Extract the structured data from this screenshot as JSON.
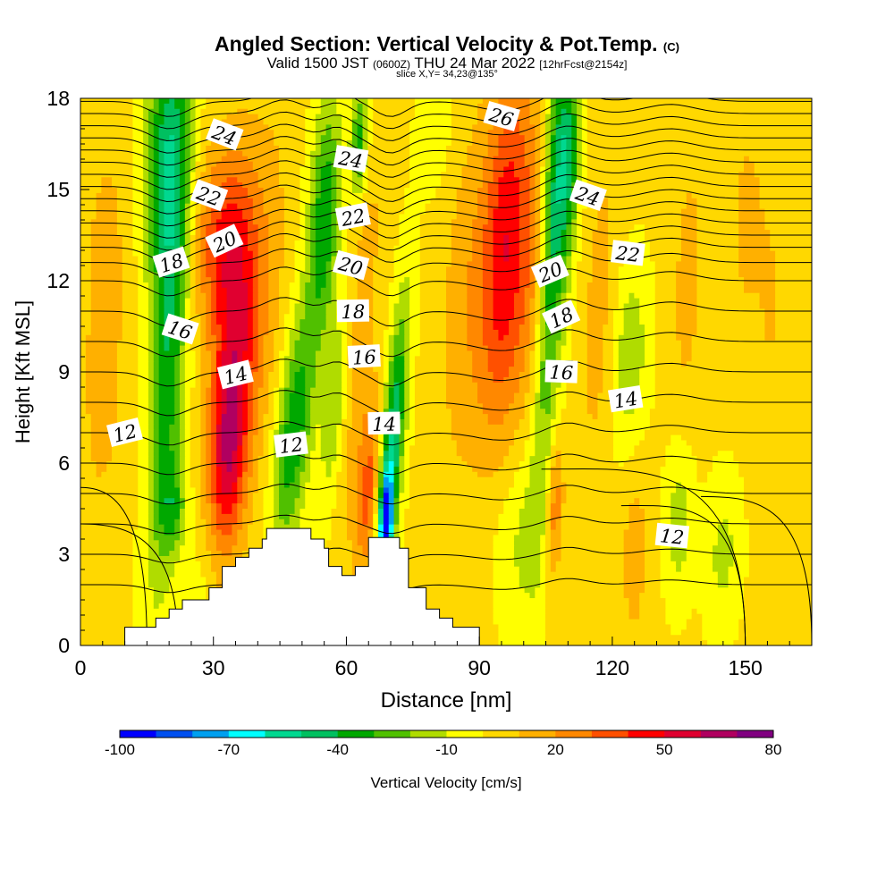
{
  "title": {
    "main": "Angled Section: Vertical Velocity & Pot.Temp.",
    "copyright": "(C)",
    "valid_prefix": "Valid 1500 JST",
    "valid_utc": "(0600Z)",
    "valid_date": "THU 24 Mar 2022",
    "forecast": "[12hrFcst@2154z]",
    "slice": "slice X,Y= 34,23@135°"
  },
  "chart_data": {
    "type": "heatmap",
    "xlabel": "Distance [nm]",
    "ylabel": "Height [Kft MSL]",
    "xlim": [
      0,
      165
    ],
    "ylim": [
      0,
      18
    ],
    "x_ticks": [
      0,
      30,
      60,
      90,
      120,
      150
    ],
    "y_ticks": [
      0,
      3,
      6,
      9,
      12,
      15,
      18
    ],
    "colorbar": {
      "label": "Vertical Velocity [cm/s]",
      "tick_labels": [
        -100,
        -70,
        -40,
        -10,
        20,
        50,
        80
      ],
      "levels": [
        -100,
        -90,
        -80,
        -70,
        -60,
        -50,
        -40,
        -30,
        -20,
        -10,
        0,
        10,
        20,
        30,
        40,
        50,
        60,
        70,
        80
      ],
      "colors": [
        "#0000ff",
        "#0050f0",
        "#00a0f0",
        "#00ffff",
        "#00d890",
        "#00c060",
        "#00a800",
        "#50c000",
        "#b0dc00",
        "#ffff00",
        "#ffd800",
        "#ffb000",
        "#ff8800",
        "#ff5000",
        "#ff0000",
        "#e00030",
        "#b00060",
        "#800080"
      ]
    },
    "background_value": 2,
    "velocity_features": [
      {
        "x": 20,
        "z": 10,
        "sx": 4,
        "sz": 8,
        "tilt": 0.3,
        "value": -40
      },
      {
        "x": 19,
        "z": 16,
        "sx": 5,
        "sz": 4,
        "tilt": 0.2,
        "value": -40
      },
      {
        "x": 35,
        "z": 10,
        "sx": 5,
        "sz": 5,
        "tilt": 0.3,
        "value": 46
      },
      {
        "x": 33,
        "z": 6,
        "sx": 4,
        "sz": 3,
        "tilt": 0.2,
        "value": 36
      },
      {
        "x": 31,
        "z": 13.5,
        "sx": 6,
        "sz": 3,
        "tilt": 0.3,
        "value": 30
      },
      {
        "x": 42,
        "z": 12,
        "sx": 5,
        "sz": 6,
        "tilt": 0.3,
        "value": 12
      },
      {
        "x": 48,
        "z": 7,
        "sx": 4,
        "sz": 4,
        "tilt": 0.6,
        "value": -40
      },
      {
        "x": 55,
        "z": 14,
        "sx": 3.5,
        "sz": 4,
        "tilt": 0.3,
        "value": -40
      },
      {
        "x": 58,
        "z": 8,
        "sx": 3,
        "sz": 4,
        "tilt": 0.6,
        "value": -25
      },
      {
        "x": 62,
        "z": 10,
        "sx": 4,
        "sz": 7,
        "tilt": 0.5,
        "value": 18
      },
      {
        "x": 65,
        "z": 5,
        "sx": 2.5,
        "sz": 3,
        "tilt": 0.3,
        "value": 32
      },
      {
        "x": 70,
        "z": 6,
        "sx": 2.5,
        "sz": 5,
        "tilt": 0.55,
        "value": -55
      },
      {
        "x": 63,
        "z": 16.5,
        "sx": 2,
        "sz": 2,
        "tilt": 0.2,
        "value": -40
      },
      {
        "x": 69,
        "z": 4,
        "sx": 1.3,
        "sz": 1.5,
        "tilt": 0.2,
        "value": -72
      },
      {
        "x": 96,
        "z": 13,
        "sx": 6,
        "sz": 6,
        "tilt": 0.3,
        "value": 48
      },
      {
        "x": 86,
        "z": 11,
        "sx": 5,
        "sz": 6,
        "tilt": 0.2,
        "value": 12
      },
      {
        "x": 106,
        "z": 12.5,
        "sx": 3.5,
        "sz": 7,
        "tilt": 0.3,
        "value": -45
      },
      {
        "x": 110,
        "z": 16,
        "sx": 3,
        "sz": 3,
        "tilt": 0.2,
        "value": -35
      },
      {
        "x": 124,
        "z": 9.5,
        "sx": 4,
        "sz": 3,
        "tilt": 0.2,
        "value": -20
      },
      {
        "x": 117,
        "z": 11,
        "sx": 4,
        "sz": 6,
        "tilt": 0.3,
        "value": 12
      },
      {
        "x": 137,
        "z": 12,
        "sx": 3,
        "sz": 4,
        "tilt": 0.2,
        "value": 14
      },
      {
        "x": 150,
        "z": 14,
        "sx": 4,
        "sz": 4,
        "tilt": 0.1,
        "value": 10
      },
      {
        "x": 156,
        "z": 11,
        "sx": 4,
        "sz": 6,
        "tilt": 0.1,
        "value": 8
      },
      {
        "x": 135,
        "z": 4,
        "sx": 3,
        "sz": 2.5,
        "tilt": 0.1,
        "value": -18
      },
      {
        "x": 145,
        "z": 3,
        "sx": 4,
        "sz": 2.5,
        "tilt": 0.2,
        "value": -15
      },
      {
        "x": 100,
        "z": 3.5,
        "sx": 7,
        "sz": 3,
        "tilt": 0.1,
        "value": -14
      },
      {
        "x": 107,
        "z": 4.5,
        "sx": 2,
        "sz": 2.5,
        "tilt": 0.2,
        "value": 30
      },
      {
        "x": 103,
        "z": 12,
        "sx": 3,
        "sz": 5,
        "tilt": 0.2,
        "value": 20
      },
      {
        "x": 125,
        "z": 3,
        "sx": 3,
        "sz": 3,
        "tilt": 0.1,
        "value": 14
      },
      {
        "x": 80,
        "z": 17,
        "sx": 4,
        "sz": 2,
        "tilt": 0.2,
        "value": -10
      },
      {
        "x": 5,
        "z": 8,
        "sx": 6,
        "sz": 5,
        "tilt": 0.2,
        "value": 10
      },
      {
        "x": 6,
        "z": 14,
        "sx": 6,
        "sz": 4,
        "tilt": 0.2,
        "value": 8
      },
      {
        "x": 27,
        "z": 2,
        "sx": 3,
        "sz": 1.5,
        "tilt": 0.1,
        "value": -6
      },
      {
        "x": 21,
        "z": 4.5,
        "sx": 3,
        "sz": 1.5,
        "tilt": 0.1,
        "value": -24
      }
    ],
    "terrain": [
      [
        10,
        0
      ],
      [
        10,
        0.6
      ],
      [
        17,
        0.6
      ],
      [
        17,
        0.9
      ],
      [
        20,
        0.9
      ],
      [
        20,
        1.2
      ],
      [
        23,
        1.2
      ],
      [
        23,
        1.5
      ],
      [
        29,
        1.5
      ],
      [
        29,
        1.9
      ],
      [
        32,
        1.9
      ],
      [
        32,
        2.6
      ],
      [
        35,
        2.6
      ],
      [
        35,
        2.9
      ],
      [
        38,
        2.9
      ],
      [
        38,
        3.2
      ],
      [
        41,
        3.2
      ],
      [
        41,
        3.5
      ],
      [
        42,
        3.5
      ],
      [
        42,
        3.85
      ],
      [
        52,
        3.85
      ],
      [
        52,
        3.5
      ],
      [
        55,
        3.5
      ],
      [
        55,
        3.2
      ],
      [
        56,
        3.2
      ],
      [
        56,
        2.6
      ],
      [
        59,
        2.6
      ],
      [
        59,
        2.3
      ],
      [
        62,
        2.3
      ],
      [
        62,
        2.6
      ],
      [
        65,
        2.6
      ],
      [
        65,
        3.55
      ],
      [
        72,
        3.55
      ],
      [
        72,
        3.2
      ],
      [
        74,
        3.2
      ],
      [
        74,
        1.9
      ],
      [
        78,
        1.9
      ],
      [
        78,
        1.2
      ],
      [
        81,
        1.2
      ],
      [
        81,
        0.9
      ],
      [
        84,
        0.9
      ],
      [
        84,
        0.6
      ],
      [
        90,
        0.6
      ],
      [
        90,
        0
      ]
    ],
    "theta_base_levels": [
      2,
      3,
      4,
      5,
      6,
      7,
      8,
      9,
      10,
      11,
      12,
      12.6,
      13.1,
      13.5,
      13.9,
      14.3,
      14.7,
      15.1,
      15.5,
      15.9,
      16.3,
      16.7,
      17.1,
      17.5,
      17.9
    ],
    "contour_labels": [
      {
        "text": "24",
        "x": 32.5,
        "z": 16.8
      },
      {
        "text": "22",
        "x": 29,
        "z": 14.8
      },
      {
        "text": "20",
        "x": 32.5,
        "z": 13.3
      },
      {
        "text": "18",
        "x": 20.5,
        "z": 12.6
      },
      {
        "text": "16",
        "x": 22.5,
        "z": 10.4
      },
      {
        "text": "14",
        "x": 35,
        "z": 8.9
      },
      {
        "text": "12",
        "x": 10,
        "z": 7.0
      },
      {
        "text": "12",
        "x": 47.5,
        "z": 6.6
      },
      {
        "text": "24",
        "x": 61,
        "z": 16.0
      },
      {
        "text": "22",
        "x": 61.5,
        "z": 14.1
      },
      {
        "text": "20",
        "x": 61,
        "z": 12.5
      },
      {
        "text": "18",
        "x": 61.5,
        "z": 11.0
      },
      {
        "text": "16",
        "x": 64,
        "z": 9.5
      },
      {
        "text": "14",
        "x": 68.5,
        "z": 7.3
      },
      {
        "text": "26",
        "x": 95,
        "z": 17.4
      },
      {
        "text": "24",
        "x": 114.5,
        "z": 14.8
      },
      {
        "text": "22",
        "x": 123.5,
        "z": 12.9
      },
      {
        "text": "20",
        "x": 106,
        "z": 12.3
      },
      {
        "text": "18",
        "x": 108.5,
        "z": 10.8
      },
      {
        "text": "16",
        "x": 108.5,
        "z": 9.0
      },
      {
        "text": "14",
        "x": 123,
        "z": 8.1
      },
      {
        "text": "12",
        "x": 133.5,
        "z": 3.6
      }
    ]
  }
}
